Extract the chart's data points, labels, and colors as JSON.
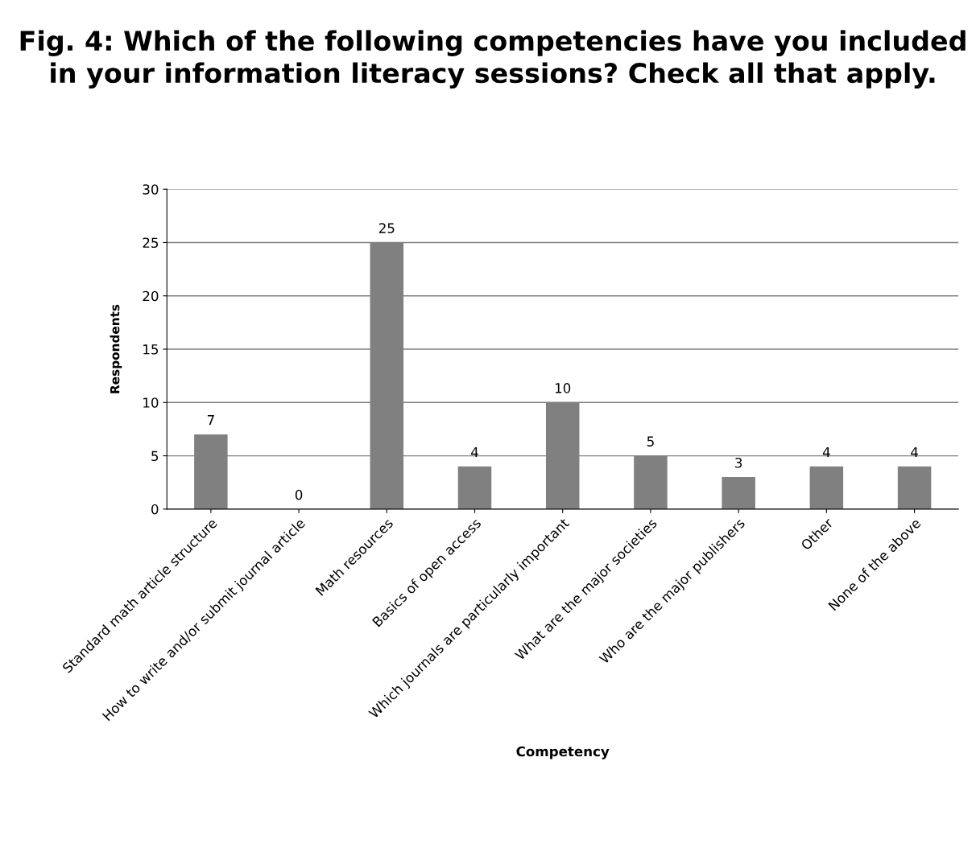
{
  "chart_data": {
    "type": "bar",
    "title": "Fig. 4: Which of the following competencies have you included in your information literacy sessions? Check all that apply.",
    "xlabel": "Competency",
    "ylabel": "Respondents",
    "categories": [
      "Standard math article structure",
      "How to write and/or submit journal article",
      "Math resources",
      "Basics of open access",
      "Which journals are particularly important",
      "What are the major societies",
      "Who are the major publishers",
      "Other",
      "None of the above"
    ],
    "values": [
      7,
      0,
      25,
      4,
      10,
      5,
      3,
      4,
      4
    ],
    "color": "#808080",
    "ylim": [
      0,
      30
    ],
    "yticks": [
      0,
      5,
      10,
      15,
      20,
      25,
      30
    ],
    "grid": "y",
    "data_labels": true
  }
}
